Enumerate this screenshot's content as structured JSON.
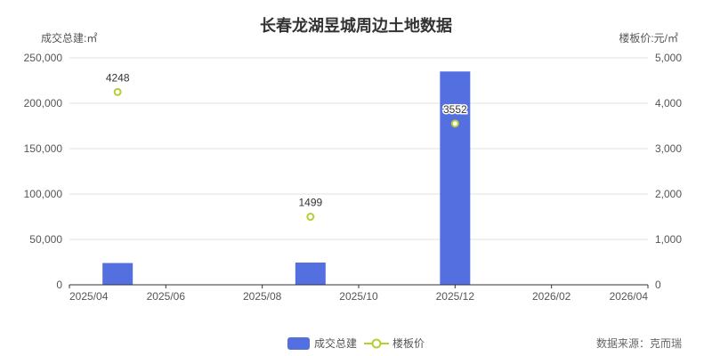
{
  "chart_data": {
    "type": "bar",
    "title": "长春龙湖昱城周边土地数据",
    "y_left": {
      "label": "成交总建:㎡",
      "range": [
        0,
        250000
      ],
      "ticks": [
        "0",
        "50,000",
        "100,000",
        "150,000",
        "200,000",
        "250,000"
      ]
    },
    "y_right": {
      "label": "楼板价:元/㎡",
      "range": [
        0,
        5000
      ],
      "ticks": [
        "0",
        "1,000",
        "2,000",
        "3,000",
        "4,000",
        "5,000"
      ]
    },
    "x_ticks": [
      "2025/04",
      "2025/06",
      "2025/08",
      "2025/10",
      "2025/12",
      "2026/02",
      "2026/04"
    ],
    "x_range": [
      "2025/04",
      "2026/04"
    ],
    "grid": true,
    "legend_position": "bottom-center",
    "series": [
      {
        "name": "成交总建",
        "kind": "bar",
        "axis": "left",
        "color": "#5470e0",
        "points": [
          {
            "x": "2025/05",
            "value": 24000
          },
          {
            "x": "2025/09",
            "value": 24500
          },
          {
            "x": "2025/12",
            "value": 235000
          }
        ]
      },
      {
        "name": "楼板价",
        "kind": "scatter",
        "axis": "right",
        "color": "#b5cf2f",
        "points": [
          {
            "x": "2025/05",
            "value": 4248,
            "label": "4248"
          },
          {
            "x": "2025/09",
            "value": 1499,
            "label": "1499"
          },
          {
            "x": "2025/12",
            "value": 3552,
            "label": "3552"
          }
        ]
      }
    ]
  },
  "source": "数据来源：克而瑞"
}
